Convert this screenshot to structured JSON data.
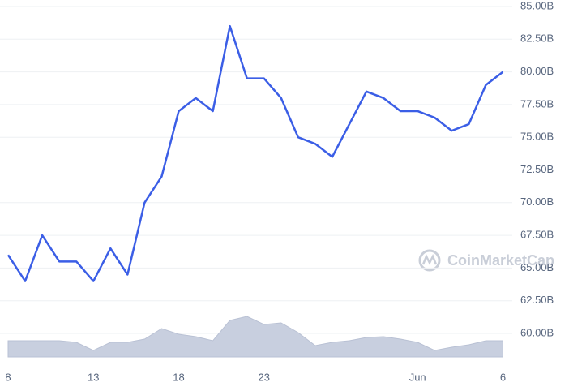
{
  "chart_data": {
    "type": "line",
    "watermark": "CoinMarketCap",
    "categories": [
      "8",
      null,
      null,
      null,
      null,
      "13",
      null,
      null,
      null,
      null,
      "18",
      null,
      null,
      null,
      null,
      "23",
      null,
      null,
      null,
      null,
      null,
      null,
      null,
      null,
      "Jun",
      null,
      null,
      null,
      null,
      "6"
    ],
    "series": [
      {
        "color": "#3b5ee6",
        "values": [
          66,
          64,
          67.5,
          65.5,
          65.5,
          64,
          66.5,
          64.5,
          70,
          72,
          77,
          78,
          77,
          83.5,
          79.5,
          79.5,
          78,
          75,
          74.5,
          73.5,
          76,
          78.5,
          78,
          77,
          77,
          76.5,
          75.5,
          76,
          79,
          80
        ]
      },
      {
        "color": "#c8cfdf",
        "axis": "y2",
        "values": [
          20,
          20,
          20,
          20,
          18,
          8,
          18,
          18,
          22,
          35,
          28,
          25,
          20,
          45,
          50,
          40,
          42,
          30,
          14,
          18,
          20,
          24,
          25,
          22,
          18,
          8,
          12,
          15,
          20,
          20
        ]
      }
    ],
    "ylim": [
      60,
      85
    ],
    "yticks": [
      {
        "value": 60,
        "label": "60.00B"
      },
      {
        "value": 62.5,
        "label": "62.50B"
      },
      {
        "value": 65,
        "label": "65.00B"
      },
      {
        "value": 67.5,
        "label": "67.50B"
      },
      {
        "value": 70,
        "label": "70.00B"
      },
      {
        "value": 72.5,
        "label": "72.50B"
      },
      {
        "value": 75,
        "label": "75.00B"
      },
      {
        "value": 77.5,
        "label": "77.50B"
      },
      {
        "value": 80,
        "label": "80.00B"
      },
      {
        "value": 82.5,
        "label": "82.50B"
      },
      {
        "value": 85,
        "label": "85.00B"
      }
    ],
    "y2lim": [
      0,
      60
    ],
    "grid": true
  }
}
